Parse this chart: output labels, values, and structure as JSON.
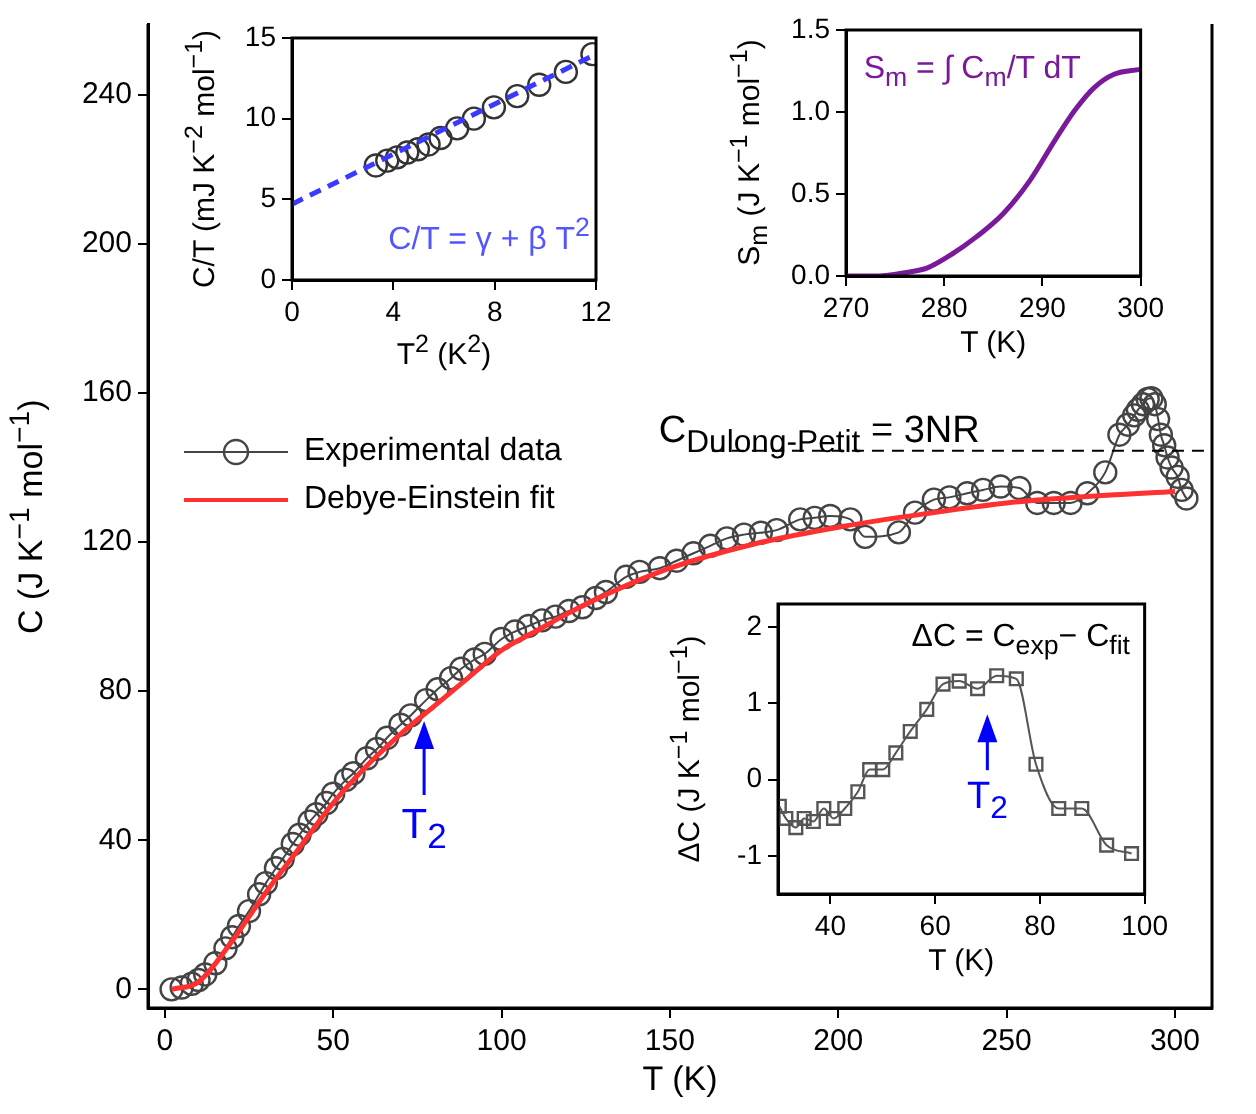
{
  "chart_data": [
    {
      "type": "line",
      "xlabel": "T (K)",
      "ylabel": "C (J K$^{−1}$ mol$^{−1}$)",
      "xlim": [
        -5,
        311
      ],
      "xticks": [
        0,
        50,
        100,
        150,
        200,
        250,
        300
      ],
      "ylim": [
        -5,
        259
      ],
      "yticks": [
        0,
        40,
        80,
        120,
        160,
        200,
        240
      ],
      "legend": "left",
      "grid": false,
      "series": [
        {
          "name": "Experimental data",
          "marker": "circle",
          "color": "#444444",
          "x": [
            2,
            5,
            8,
            10,
            12,
            15,
            18,
            20,
            22,
            25,
            28,
            30,
            33,
            35,
            38,
            40,
            43,
            45,
            48,
            50,
            53.8,
            56,
            60,
            63,
            66,
            70,
            73,
            77.6,
            81,
            85,
            88,
            92,
            95,
            100,
            104,
            108,
            112,
            116,
            120,
            124,
            128,
            131,
            137,
            141,
            147,
            152,
            157,
            162,
            166.9,
            172,
            177,
            181.7,
            188.7,
            193,
            197.6,
            203.6,
            208,
            218,
            222.8,
            228.4,
            233,
            238.3,
            243,
            248.2,
            253.8,
            259.1,
            264,
            269,
            274,
            279.3,
            283.5,
            286,
            287.9,
            289,
            290.5,
            291.9,
            293,
            294,
            295,
            295.8,
            296.8,
            297.8,
            299,
            300.8,
            302,
            303.4
          ],
          "values": [
            0,
            0.5,
            1.5,
            2.5,
            4,
            7,
            11,
            14,
            17,
            21,
            25.5,
            28.5,
            32.5,
            35,
            39,
            41.5,
            45,
            47,
            50,
            52.5,
            56.2,
            58,
            62,
            64.5,
            67.5,
            71,
            73.5,
            77.6,
            80.5,
            83.5,
            86,
            88.5,
            90,
            94,
            96,
            97.5,
            99,
            100,
            101.5,
            102.5,
            105,
            106.6,
            110.7,
            112,
            113,
            115,
            117,
            119,
            121,
            122,
            122.5,
            123.2,
            126.1,
            126.5,
            127,
            126.1,
            121.4,
            122.6,
            127.9,
            131.4,
            132,
            133.1,
            134,
            134.9,
            134.5,
            130.5,
            130.5,
            130.5,
            133.1,
            138.7,
            148.8,
            151.5,
            154,
            155.5,
            157,
            158.4,
            158.6,
            157,
            153,
            148.8,
            146,
            142.7,
            140,
            137.5,
            134,
            131.7
          ]
        },
        {
          "name": "Debye-Einstein fit",
          "marker": "none",
          "color": "#ff3030",
          "x": [
            2,
            10,
            20,
            25,
            30,
            40,
            50,
            60,
            70,
            80,
            90,
            100,
            110,
            120,
            130,
            150,
            175,
            200,
            225,
            250,
            275,
            300
          ],
          "values": [
            0,
            2,
            13,
            19.5,
            26,
            38,
            50,
            60,
            68.5,
            76,
            83.5,
            91,
            96,
            101,
            105.5,
            113,
            119.5,
            124,
            127.5,
            130.5,
            132.3,
            133.6
          ]
        }
      ],
      "ref_lines": [
        {
          "axis": "y",
          "value": 144.5,
          "line_style": "dashed",
          "color": "#000000"
        }
      ],
      "annotations": [
        "C$_{Dulong-Petit}$ = 3NR",
        {
          "text": "T$_{2}$",
          "x": 77,
          "y": 72
        }
      ]
    },
    {
      "type": "scatter",
      "xlabel": "T$^{2}$ (K$^{2}$)",
      "ylabel": "C/T (mJ K$^{−2}$ mol$^{−1}$)",
      "xlim": [
        0,
        12
      ],
      "xticks": [
        0,
        4,
        8,
        12
      ],
      "ylim": [
        0,
        15
      ],
      "yticks": [
        0,
        5,
        10,
        15
      ],
      "grid": false,
      "series": [
        {
          "marker": "circle",
          "color": "#333333",
          "x": [
            3.31,
            3.76,
            4.15,
            4.55,
            4.97,
            5.39,
            5.86,
            6.52,
            7.18,
            7.97,
            8.89,
            9.76,
            10.81,
            11.86
          ],
          "values": [
            7.1,
            7.4,
            7.6,
            7.9,
            8.1,
            8.4,
            8.8,
            9.4,
            10.0,
            10.7,
            11.4,
            12.1,
            12.9,
            14.0
          ]
        },
        {
          "type": "line",
          "marker": "none",
          "line_style": "dashed",
          "color": "#3a3aff",
          "x": [
            0,
            12
          ],
          "values": [
            4.7,
            14.0
          ]
        }
      ],
      "annotations": [
        "C/T = γ + β T$^{2}$"
      ]
    },
    {
      "type": "line",
      "xlabel": "T (K)",
      "ylabel": "S$_{m}$ (J K$^{−1}$ mol$^{−1}$)",
      "xlim": [
        270,
        300
      ],
      "xticks": [
        270,
        280,
        290,
        300
      ],
      "ylim": [
        0,
        1.5
      ],
      "yticks": [
        {
          "value": 0,
          "label": "0.0"
        },
        0.5,
        {
          "value": 1,
          "label": "1.0"
        },
        1.5
      ],
      "grid": false,
      "series": [
        {
          "marker": "none",
          "color": "#7a1a9a",
          "x": [
            270,
            273.3,
            276,
            278.3,
            280.7,
            283.3,
            286,
            288.7,
            291.3,
            293.3,
            295.3,
            297.3,
            300
          ],
          "values": [
            0,
            0,
            0.02,
            0.05,
            0.13,
            0.24,
            0.38,
            0.58,
            0.83,
            1.01,
            1.15,
            1.23,
            1.26
          ]
        }
      ],
      "annotations": [
        "S$_{m}$ = ∫ C$_{m}$/T dT"
      ]
    },
    {
      "type": "line",
      "xlabel": "T (K)",
      "ylabel": "ΔC (J K$^{−1}$ mol$^{−1}$)",
      "xlim": [
        30,
        100
      ],
      "xticks": [
        40,
        60,
        80,
        100
      ],
      "ylim": [
        -1.5,
        2.3
      ],
      "yticks": [
        -1,
        0,
        1,
        2
      ],
      "grid": false,
      "series": [
        {
          "marker": "square",
          "color": "#555555",
          "x": [
            30.25,
            31.5,
            33.4,
            35,
            36.75,
            38.75,
            40.6,
            42.75,
            45.25,
            47.5,
            50,
            52.5,
            55.25,
            58.4,
            61.5,
            64.6,
            68.1,
            71.75,
            75.5,
            79.25,
            83.6,
            88,
            92.75,
            97.5
          ],
          "values": [
            -0.35,
            -0.51,
            -0.63,
            -0.51,
            -0.55,
            -0.38,
            -0.51,
            -0.38,
            -0.16,
            0.13,
            0.13,
            0.35,
            0.63,
            0.92,
            1.25,
            1.29,
            1.19,
            1.36,
            1.32,
            0.2,
            -0.38,
            -0.38,
            -0.86,
            -0.97
          ]
        }
      ],
      "annotations": [
        "ΔC = C$_{exp}$− C$_{fit}$",
        "T$_{2}$"
      ]
    }
  ]
}
